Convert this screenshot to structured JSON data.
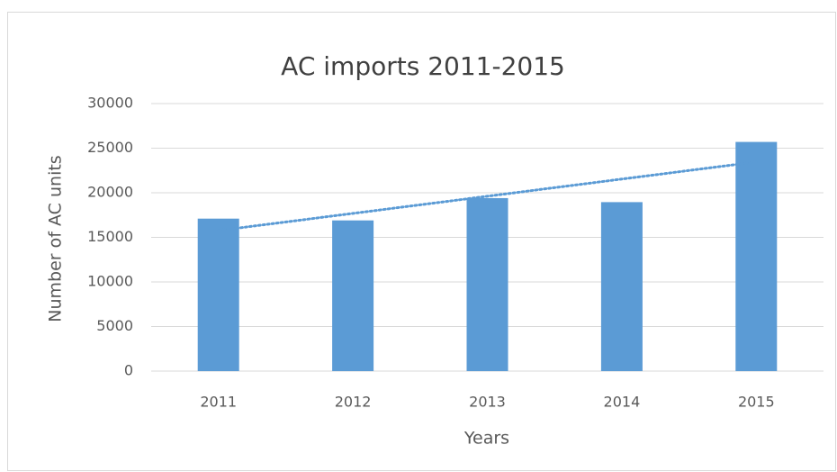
{
  "chart_data": {
    "type": "bar",
    "title": "AC imports 2011-2015",
    "x_label": "Years",
    "y_label": "Number of AC units",
    "categories": [
      "2011",
      "2012",
      "2013",
      "2014",
      "2015"
    ],
    "values": [
      17100,
      16900,
      19400,
      18950,
      25700
    ],
    "color": "#5b9bd5",
    "ylim": [
      0,
      30000
    ],
    "yticks": [
      0,
      5000,
      10000,
      15000,
      20000,
      25000,
      30000
    ],
    "grid": true,
    "trendline": "linear"
  }
}
